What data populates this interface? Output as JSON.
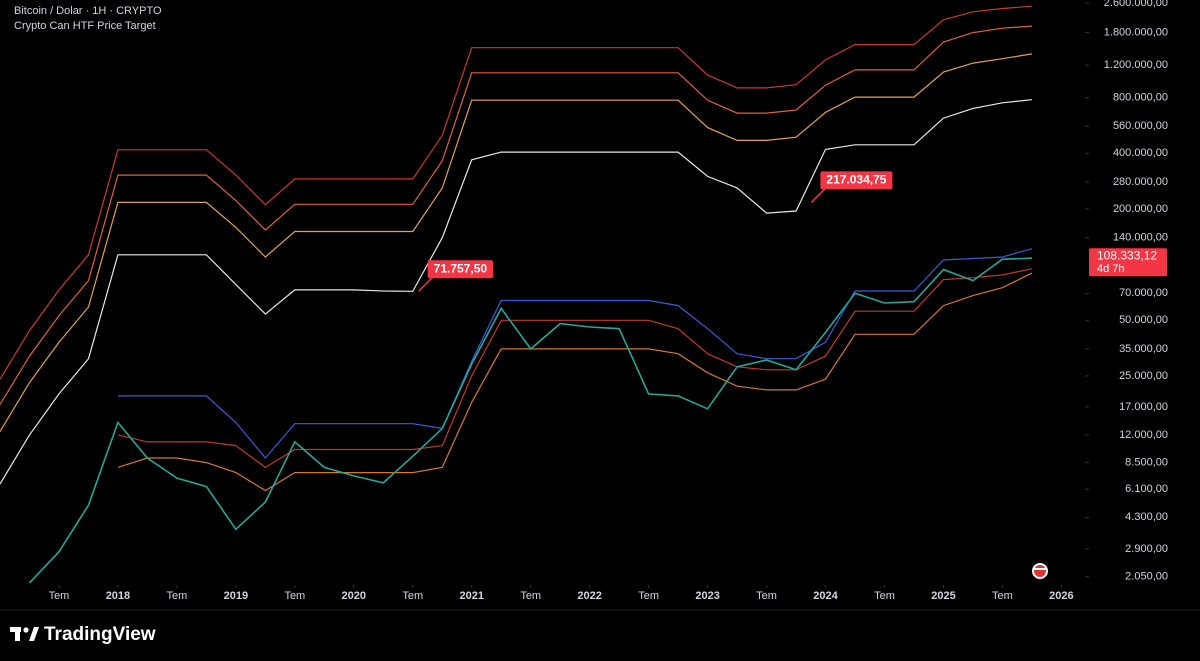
{
  "chart_data": {
    "type": "line",
    "title": "Bitcoin / Dolar · 1H · CRYPTO",
    "subtitle": "Crypto Can HTF Price Target",
    "brand": "TradingView",
    "log_scale": true,
    "grid": false,
    "x": [
      2017.0,
      2017.25,
      2017.5,
      2017.75,
      2018.0,
      2018.25,
      2018.5,
      2018.75,
      2019.0,
      2019.25,
      2019.5,
      2019.75,
      2020.0,
      2020.25,
      2020.5,
      2020.75,
      2021.0,
      2021.25,
      2021.5,
      2021.75,
      2022.0,
      2022.25,
      2022.5,
      2022.75,
      2023.0,
      2023.25,
      2023.5,
      2023.75,
      2024.0,
      2024.25,
      2024.5,
      2024.75,
      2025.0,
      2025.25,
      2025.5,
      2025.75
    ],
    "xlim": [
      2017.0,
      2026.2
    ],
    "xticks": [
      {
        "value": 2017.5,
        "label": "Tem"
      },
      2018,
      {
        "value": 2018.5,
        "label": "Tem"
      },
      2019,
      {
        "value": 2019.5,
        "label": "Tem"
      },
      2020,
      {
        "value": 2020.5,
        "label": "Tem"
      },
      2021,
      {
        "value": 2021.5,
        "label": "Tem"
      },
      2022,
      {
        "value": 2022.5,
        "label": "Tem"
      },
      2023,
      {
        "value": 2023.5,
        "label": "Tem"
      },
      2024,
      {
        "value": 2024.5,
        "label": "Tem"
      },
      2025,
      {
        "value": 2025.5,
        "label": "Tem"
      },
      2026
    ],
    "ylim": [
      1850,
      2700000
    ],
    "yticks": [
      {
        "value": 2600000,
        "label": "2.600.000,00"
      },
      {
        "value": 1800000,
        "label": "1.800.000,00"
      },
      {
        "value": 1200000,
        "label": "1.200.000,00"
      },
      {
        "value": 800000,
        "label": "800.000,00"
      },
      {
        "value": 560000,
        "label": "560.000,00"
      },
      {
        "value": 400000,
        "label": "400.000,00"
      },
      {
        "value": 280000,
        "label": "280.000,00"
      },
      {
        "value": 200000,
        "label": "200.000,00"
      },
      {
        "value": 140000,
        "label": "140.000,00"
      },
      {
        "value": 70000,
        "label": "70.000,00"
      },
      {
        "value": 50000,
        "label": "50.000,00"
      },
      {
        "value": 35000,
        "label": "35.000,00"
      },
      {
        "value": 25000,
        "label": "25.000,00"
      },
      {
        "value": 17000,
        "label": "17.000,00"
      },
      {
        "value": 12000,
        "label": "12.000,00"
      },
      {
        "value": 8500,
        "label": "8.500,00"
      },
      {
        "value": 6100,
        "label": "6.100,00"
      },
      {
        "value": 4300,
        "label": "4.300,00"
      },
      {
        "value": 2900,
        "label": "2.900,00"
      },
      {
        "value": 2050,
        "label": "2.050,00"
      }
    ],
    "series": [
      {
        "color": "#c9392d",
        "values": [
          24000,
          44000,
          73000,
          113000,
          418000,
          418000,
          418000,
          418000,
          305000,
          211000,
          291000,
          291000,
          291000,
          291000,
          291000,
          500000,
          1490000,
          1490000,
          1490000,
          1490000,
          1490000,
          1490000,
          1490000,
          1490000,
          1060000,
          904000,
          904000,
          940000,
          1280000,
          1550000,
          1550000,
          1550000,
          2110000,
          2330000,
          2430000,
          2500000
        ]
      },
      {
        "color": "#e0613a",
        "values": [
          17500,
          32000,
          53000,
          82000,
          305000,
          305000,
          305000,
          305000,
          222000,
          154000,
          212000,
          212000,
          212000,
          212000,
          212000,
          365000,
          1090000,
          1090000,
          1090000,
          1090000,
          1090000,
          1090000,
          1090000,
          1090000,
          774000,
          660000,
          660000,
          686000,
          934000,
          1130000,
          1130000,
          1130000,
          1600000,
          1800000,
          1900000,
          1950000
        ]
      },
      {
        "color": "#e3a24a",
        "values": [
          12500,
          23000,
          38000,
          59000,
          217000,
          217000,
          217000,
          217000,
          159000,
          110000,
          151000,
          151000,
          151000,
          151000,
          151000,
          260000,
          775000,
          775000,
          775000,
          775000,
          775000,
          775000,
          775000,
          775000,
          551000,
          470000,
          470000,
          489000,
          666000,
          806000,
          806000,
          806000,
          1100000,
          1230000,
          1300000,
          1380000
        ]
      },
      {
        "color": "#e8e8e8",
        "values": [
          6500,
          12000,
          20000,
          31000,
          113000,
          113000,
          113000,
          113000,
          78000,
          54000,
          73000,
          73000,
          73000,
          72000,
          71757.5,
          140000,
          369000,
          406000,
          406000,
          406000,
          406000,
          406000,
          406000,
          406000,
          300000,
          260000,
          190000,
          195000,
          420000,
          445000,
          445000,
          445000,
          620000,
          700000,
          750000,
          780000
        ]
      },
      {
        "color": "#3a5bd9",
        "values": [
          null,
          null,
          null,
          null,
          19500,
          19500,
          19500,
          19500,
          14000,
          9000,
          13800,
          13800,
          13800,
          13800,
          13800,
          13000,
          30000,
          64000,
          64000,
          64000,
          64000,
          64000,
          64000,
          60000,
          45000,
          33000,
          31000,
          31000,
          38000,
          72000,
          72000,
          72000,
          106000,
          108000,
          110000,
          122000
        ]
      },
      {
        "color": "#c0392b",
        "values": [
          null,
          null,
          null,
          null,
          12000,
          11000,
          11000,
          11000,
          10500,
          8000,
          10000,
          10000,
          10000,
          10000,
          10000,
          10500,
          25000,
          50000,
          50000,
          50000,
          50000,
          50000,
          50000,
          45000,
          33000,
          28000,
          27000,
          27000,
          32000,
          56000,
          56000,
          56000,
          83000,
          85000,
          88000,
          95000
        ]
      },
      {
        "color": "#d4792a",
        "values": [
          null,
          null,
          null,
          null,
          8000,
          9000,
          9000,
          8500,
          7500,
          6000,
          7500,
          7500,
          7500,
          7500,
          7500,
          8000,
          18000,
          35000,
          35000,
          35000,
          35000,
          35000,
          35000,
          33000,
          26000,
          22000,
          21000,
          21000,
          24000,
          42000,
          42000,
          42000,
          60000,
          68000,
          75000,
          90000
        ]
      },
      {
        "color": "#26a69a",
        "values": [
          null,
          1900,
          2800,
          5000,
          14000,
          9000,
          7000,
          6300,
          3700,
          5200,
          11000,
          8000,
          7200,
          6600,
          9200,
          13000,
          29000,
          58000,
          35000,
          48000,
          46000,
          45000,
          20000,
          19500,
          16600,
          28000,
          30500,
          27000,
          43000,
          70000,
          62000,
          63000,
          94000,
          82000,
          107000,
          108333.12
        ]
      }
    ],
    "annotations": [
      {
        "x": 2020.55,
        "value": 71757.5,
        "label": "71.757,50"
      },
      {
        "x": 2023.88,
        "value": 217034.75,
        "label": "217.034,75"
      }
    ],
    "price_label": {
      "value": 108333.12,
      "label": "108.333,12",
      "countdown": "4d 7h"
    }
  }
}
